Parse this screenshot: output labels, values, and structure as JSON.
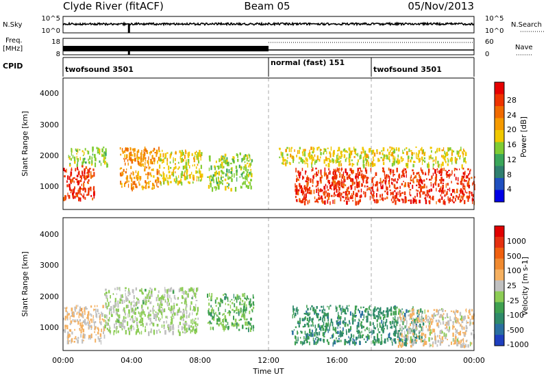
{
  "header": {
    "station": "Clyde River (fitACF)",
    "beam": "Beam 05",
    "date": "05/Nov/2013"
  },
  "top_panels": {
    "nsky": {
      "label": "N.Sky",
      "ticks": [
        "10^5",
        "10^0"
      ]
    },
    "nsearch": {
      "label": "N.Search",
      "ticks": [
        "10^5",
        "10^0"
      ]
    },
    "freq": {
      "label_line1": "Freq.",
      "label_line2": "[MHz]",
      "ticks": [
        "18",
        "8"
      ]
    },
    "nave": {
      "label": "Nave",
      "ticks": [
        "60",
        "0"
      ]
    },
    "cpid": {
      "label": "CPID",
      "segments": [
        {
          "name": "twofsound 3501",
          "start_hour": 0,
          "end_hour": 12
        },
        {
          "name": "normal (fast) 151",
          "start_hour": 12,
          "end_hour": 18
        },
        {
          "name": "twofsound 3501",
          "start_hour": 18,
          "end_hour": 24
        }
      ]
    }
  },
  "x_axis": {
    "label": "Time UT",
    "tick_labels": [
      "00:00",
      "04:00",
      "08:00",
      "12:00",
      "16:00",
      "20:00",
      "00:00"
    ],
    "range_hours": [
      0,
      24
    ]
  },
  "panels": {
    "power": {
      "ylabel": "Slant Range [km]",
      "yticks": [
        "4000",
        "3000",
        "2000",
        "1000"
      ],
      "cbar_label": "Power [dB]",
      "cbar_ticks": [
        "28",
        "24",
        "20",
        "16",
        "12",
        "8",
        "4"
      ],
      "colors": [
        "#0000e6",
        "#1f4fbf",
        "#2f7f6f",
        "#3aa65a",
        "#7fcc33",
        "#f0c800",
        "#f59a00",
        "#f06a00",
        "#ee3300",
        "#e60000"
      ]
    },
    "velocity": {
      "ylabel": "Slant Range [km]",
      "yticks": [
        "4000",
        "3000",
        "2000",
        "1000"
      ],
      "cbar_label": "Velocity [m s-1]",
      "cbar_ticks": [
        "1000",
        "500",
        "100",
        "25",
        "-25",
        "-100",
        "-500",
        "-1000"
      ],
      "colors": [
        "#1e3fbf",
        "#2a6fa0",
        "#2f8a6a",
        "#3fa050",
        "#8ccc55",
        "#c0c0c0",
        "#f5b060",
        "#f08a30",
        "#f06010",
        "#e53010",
        "#e00000"
      ]
    }
  },
  "chart_data": [
    {
      "type": "heatmap",
      "title": "Power [dB]",
      "xlabel": "Time UT",
      "ylabel": "Slant Range [km]",
      "x_range_hours": [
        0,
        24
      ],
      "y_range_km": [
        180,
        4600
      ],
      "color_range": [
        0,
        30
      ],
      "scatter_regions": [
        {
          "x_start_hour": 0.0,
          "x_end_hour": 1.8,
          "range_km": [
            550,
            1700
          ],
          "value": 26
        },
        {
          "x_start_hour": 0.3,
          "x_end_hour": 2.6,
          "range_km": [
            1700,
            2300
          ],
          "value": 14
        },
        {
          "x_start_hour": 3.3,
          "x_end_hour": 5.6,
          "range_km": [
            900,
            2300
          ],
          "value": 20
        },
        {
          "x_start_hour": 5.6,
          "x_end_hour": 8.1,
          "range_km": [
            1100,
            2200
          ],
          "value": 16
        },
        {
          "x_start_hour": 8.4,
          "x_end_hour": 11.0,
          "range_km": [
            900,
            2100
          ],
          "value": 14
        },
        {
          "x_start_hour": 13.5,
          "x_end_hour": 24.0,
          "range_km": [
            450,
            1600
          ],
          "value": 26
        },
        {
          "x_start_hour": 12.6,
          "x_end_hour": 23.5,
          "range_km": [
            1700,
            2300
          ],
          "value": 16
        }
      ]
    },
    {
      "type": "heatmap",
      "title": "Velocity [m s-1]",
      "xlabel": "Time UT",
      "ylabel": "Slant Range [km]",
      "x_range_hours": [
        0,
        24
      ],
      "y_range_km": [
        180,
        4600
      ],
      "color_range": [
        -1000,
        1000
      ],
      "scatter_regions": [
        {
          "x_start_hour": 0.0,
          "x_end_hour": 2.4,
          "range_km": [
            500,
            1700
          ],
          "value": 100
        },
        {
          "x_start_hour": 2.4,
          "x_end_hour": 7.9,
          "range_km": [
            800,
            2300
          ],
          "value": -100
        },
        {
          "x_start_hour": 8.4,
          "x_end_hour": 11.1,
          "range_km": [
            900,
            2100
          ],
          "value": -300
        },
        {
          "x_start_hour": 13.3,
          "x_end_hour": 21.0,
          "range_km": [
            450,
            1700
          ],
          "value": -500
        },
        {
          "x_start_hour": 19.5,
          "x_end_hour": 24.0,
          "range_km": [
            350,
            1600
          ],
          "value": 50
        }
      ]
    }
  ]
}
